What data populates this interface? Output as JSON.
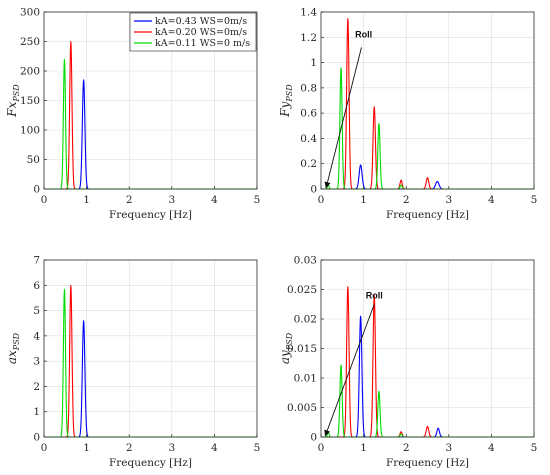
{
  "chart_data": [
    {
      "type": "line",
      "id": "fx",
      "xlabel": "Frequency [Hz]",
      "ylabel": "Fx",
      "ylabel_sub": "PSD",
      "xlim": [
        0,
        5
      ],
      "ylim": [
        0,
        300
      ],
      "xticks": [
        0,
        1,
        2,
        3,
        4,
        5
      ],
      "yticks": [
        0,
        50,
        100,
        150,
        200,
        250,
        300
      ],
      "yticklabels": [
        "0",
        "50",
        "100",
        "150",
        "200",
        "250",
        "300"
      ],
      "grid": true,
      "legend_position": "top-right",
      "series": [
        {
          "name": "kA=0.43 WS=0m/s",
          "color": "#0000ff",
          "peaks": [
            {
              "x": 0.93,
              "y": 185,
              "w": 0.03
            }
          ]
        },
        {
          "name": "kA=0.20 WS=0m/s",
          "color": "#ff0000",
          "peaks": [
            {
              "x": 0.63,
              "y": 250,
              "w": 0.027
            }
          ]
        },
        {
          "name": "kA=0.11 WS=0 m/s",
          "color": "#00dd00",
          "peaks": [
            {
              "x": 0.48,
              "y": 220,
              "w": 0.025
            }
          ]
        }
      ]
    },
    {
      "type": "line",
      "id": "fy",
      "xlabel": "Frequency [Hz]",
      "ylabel": "Fy",
      "ylabel_sub": "PSD",
      "xlim": [
        0,
        5
      ],
      "ylim": [
        0,
        1.4
      ],
      "xticks": [
        0,
        1,
        2,
        3,
        4,
        5
      ],
      "yticks": [
        0,
        0.2,
        0.4,
        0.6,
        0.8,
        1,
        1.2,
        1.4
      ],
      "yticklabels": [
        "0",
        "0.2",
        "0.4",
        "0.6",
        "0.8",
        "1",
        "1.2",
        "1.4"
      ],
      "grid": true,
      "annotation": {
        "text": "Roll",
        "from": [
          0.95,
          1.12
        ],
        "to": [
          0.12,
          0.01
        ],
        "label_at": [
          0.8,
          1.2
        ]
      },
      "series": [
        {
          "name": "kA=0.43 WS=0m/s",
          "color": "#0000ff",
          "peaks": [
            {
              "x": 0.93,
              "y": 0.19,
              "w": 0.035
            },
            {
              "x": 2.73,
              "y": 0.06,
              "w": 0.04
            }
          ]
        },
        {
          "name": "kA=0.20 WS=0m/s",
          "color": "#ff0000",
          "peaks": [
            {
              "x": 0.63,
              "y": 1.35,
              "w": 0.028
            },
            {
              "x": 1.25,
              "y": 0.65,
              "w": 0.028
            },
            {
              "x": 1.88,
              "y": 0.07,
              "w": 0.025
            },
            {
              "x": 2.5,
              "y": 0.09,
              "w": 0.03
            }
          ]
        },
        {
          "name": "kA=0.11 WS=0 m/s",
          "color": "#00dd00",
          "peaks": [
            {
              "x": 0.17,
              "y": 0.03,
              "w": 0.02
            },
            {
              "x": 0.47,
              "y": 0.96,
              "w": 0.026
            },
            {
              "x": 1.36,
              "y": 0.52,
              "w": 0.026
            },
            {
              "x": 1.88,
              "y": 0.03,
              "w": 0.025
            }
          ]
        }
      ]
    },
    {
      "type": "line",
      "id": "ax",
      "xlabel": "Frequency [Hz]",
      "ylabel": "ax",
      "ylabel_sub": "PSD",
      "xlim": [
        0,
        5
      ],
      "ylim": [
        0,
        7
      ],
      "xticks": [
        0,
        1,
        2,
        3,
        4,
        5
      ],
      "yticks": [
        0,
        1,
        2,
        3,
        4,
        5,
        6,
        7
      ],
      "yticklabels": [
        "0",
        "1",
        "2",
        "3",
        "4",
        "5",
        "6",
        "7"
      ],
      "grid": true,
      "series": [
        {
          "name": "kA=0.43 WS=0m/s",
          "color": "#0000ff",
          "peaks": [
            {
              "x": 0.93,
              "y": 4.6,
              "w": 0.03
            }
          ]
        },
        {
          "name": "kA=0.20 WS=0m/s",
          "color": "#ff0000",
          "peaks": [
            {
              "x": 0.63,
              "y": 6.0,
              "w": 0.027
            }
          ]
        },
        {
          "name": "kA=0.11 WS=0 m/s",
          "color": "#00dd00",
          "peaks": [
            {
              "x": 0.48,
              "y": 5.85,
              "w": 0.025
            }
          ]
        }
      ]
    },
    {
      "type": "line",
      "id": "ay",
      "xlabel": "Frequency [Hz]",
      "ylabel": "ay",
      "ylabel_sub": "PSD",
      "xlim": [
        0,
        5
      ],
      "ylim": [
        0,
        0.03
      ],
      "xticks": [
        0,
        1,
        2,
        3,
        4,
        5
      ],
      "yticks": [
        0,
        0.005,
        0.01,
        0.015,
        0.02,
        0.025,
        0.03
      ],
      "yticklabels": [
        "0",
        "0.005",
        "0.01",
        "0.015",
        "0.02",
        "0.025",
        "0.03"
      ],
      "grid": true,
      "annotation": {
        "text": "Roll",
        "from": [
          1.25,
          0.0225
        ],
        "to": [
          0.1,
          0.0002
        ],
        "label_at": [
          1.05,
          0.0235
        ]
      },
      "series": [
        {
          "name": "kA=0.43 WS=0m/s",
          "color": "#0000ff",
          "peaks": [
            {
              "x": 0.93,
              "y": 0.0205,
              "w": 0.03
            },
            {
              "x": 2.75,
              "y": 0.0015,
              "w": 0.03
            }
          ]
        },
        {
          "name": "kA=0.20 WS=0m/s",
          "color": "#ff0000",
          "peaks": [
            {
              "x": 0.63,
              "y": 0.0255,
              "w": 0.028
            },
            {
              "x": 1.25,
              "y": 0.024,
              "w": 0.028
            },
            {
              "x": 1.88,
              "y": 0.0009,
              "w": 0.025
            },
            {
              "x": 2.5,
              "y": 0.0018,
              "w": 0.03
            }
          ]
        },
        {
          "name": "kA=0.11 WS=0 m/s",
          "color": "#00dd00",
          "peaks": [
            {
              "x": 0.17,
              "y": 0.0008,
              "w": 0.02
            },
            {
              "x": 0.47,
              "y": 0.0122,
              "w": 0.026
            },
            {
              "x": 1.36,
              "y": 0.0078,
              "w": 0.026
            },
            {
              "x": 1.88,
              "y": 0.0005,
              "w": 0.025
            }
          ]
        }
      ]
    }
  ]
}
